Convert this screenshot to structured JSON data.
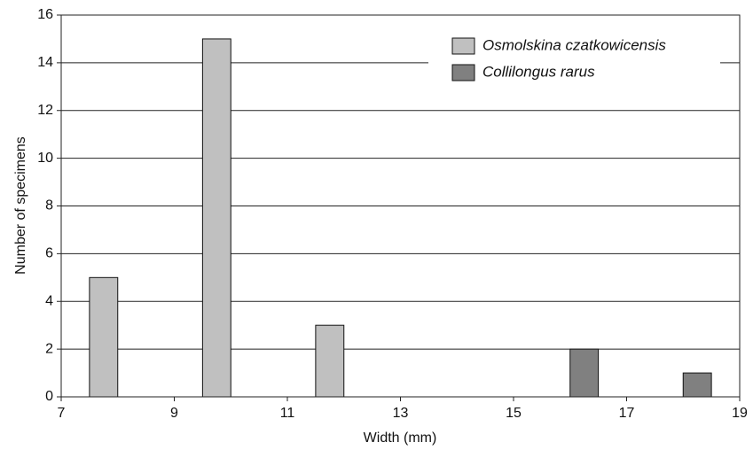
{
  "chart_data": {
    "type": "histogram",
    "x_label": "Width (mm)",
    "y_label": "Number of specimens",
    "series": [
      {
        "name": "Osmolskina czatkowicensis",
        "color": "#c0c0c0",
        "x": [
          7.5,
          9.5,
          11.5
        ],
        "x_end": [
          8,
          10,
          12
        ],
        "values": [
          5,
          15,
          3
        ]
      },
      {
        "name": "Collilongus rarus",
        "color": "#808080",
        "x": [
          16,
          18
        ],
        "x_end": [
          16.5,
          18.5
        ],
        "values": [
          2,
          1
        ]
      }
    ],
    "xlim": [
      7,
      19
    ],
    "xticks": [
      7,
      9,
      11,
      13,
      15,
      17,
      19
    ],
    "ylim": [
      0,
      16
    ],
    "yticks": [
      0,
      2,
      4,
      6,
      8,
      10,
      12,
      14,
      16
    ],
    "grid": true,
    "legend": "upper right"
  }
}
